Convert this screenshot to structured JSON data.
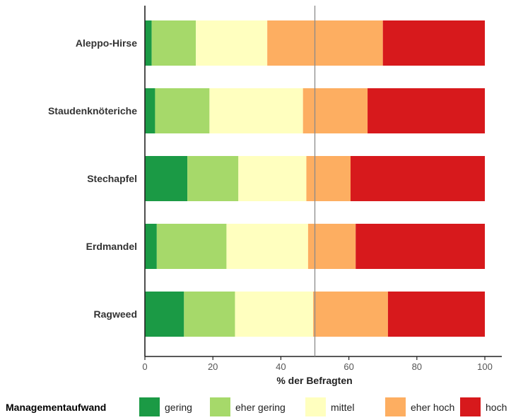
{
  "chart_data": {
    "type": "bar",
    "orientation": "horizontal",
    "stacked": true,
    "categories": [
      "Aleppo-Hirse",
      "Staudenknöteriche",
      "Stechapfel",
      "Erdmandel",
      "Ragweed"
    ],
    "series": [
      {
        "name": "gering",
        "color": "#1b9a45",
        "values": [
          2,
          3,
          12.5,
          3.5,
          11.5
        ]
      },
      {
        "name": "eher gering",
        "color": "#a6d96a",
        "values": [
          13,
          16,
          15,
          20.5,
          15
        ]
      },
      {
        "name": "mittel",
        "color": "#ffffbf",
        "values": [
          21,
          27.5,
          20,
          24,
          23
        ]
      },
      {
        "name": "eher hoch",
        "color": "#fdae61",
        "values": [
          34,
          19,
          13,
          14,
          22
        ]
      },
      {
        "name": "hoch",
        "color": "#d7191c",
        "values": [
          30,
          34.5,
          39.5,
          38,
          28.5
        ]
      }
    ],
    "xlabel": "% der Befragten",
    "ylabel": "",
    "xlim": [
      0,
      100
    ],
    "xticks": [
      0,
      20,
      40,
      60,
      80,
      100
    ],
    "reference_line": 50,
    "grid": false,
    "legend": {
      "title": "Managementaufwand",
      "placement": "bottom"
    }
  }
}
